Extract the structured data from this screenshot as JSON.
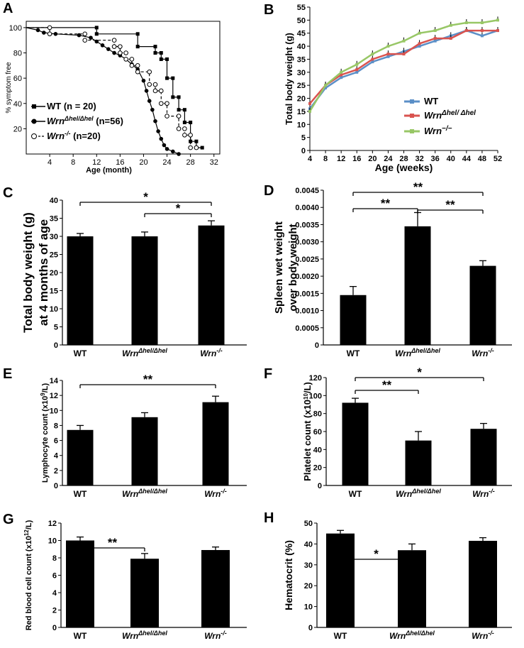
{
  "chart_data": [
    {
      "id": "A",
      "panel_label": "A",
      "type": "line",
      "subtype": "kaplan-meier",
      "xlabel": "Age (month)",
      "ylabel": "% symptom free",
      "xticks": [
        "4",
        "8",
        "12",
        "16",
        "20",
        "24",
        "28",
        "32"
      ],
      "yticks": [
        "20",
        "40",
        "60",
        "80",
        "100"
      ],
      "xlim": [
        0,
        33
      ],
      "ylim": [
        0,
        105
      ],
      "series": [
        {
          "name": "WT",
          "legend": "WT (n = 20)",
          "style": "solid",
          "marker": "square",
          "x": [
            0,
            12,
            12,
            19,
            19,
            22,
            22,
            23,
            23,
            24,
            24,
            25,
            25,
            26,
            26,
            27,
            27,
            28,
            28,
            29,
            29,
            30
          ],
          "y": [
            100,
            100,
            95,
            95,
            85,
            85,
            80,
            80,
            75,
            75,
            60,
            60,
            45,
            45,
            35,
            35,
            25,
            25,
            10,
            10,
            5,
            5
          ]
        },
        {
          "name": "WrnΔhel/Δhel",
          "legend_italic": "Wrn",
          "legend_sup": "Δhel/Δhel",
          "legend_rest": "(n=56)",
          "style": "solid",
          "marker": "filled-circle",
          "x": [
            0,
            2,
            3,
            5,
            9,
            11,
            12,
            13,
            14,
            15,
            16,
            17,
            18,
            19,
            20,
            20.5,
            21,
            21.5,
            22,
            22.5,
            23,
            23.5,
            24,
            25,
            26
          ],
          "y": [
            100,
            98,
            96,
            95,
            94,
            92,
            89,
            86,
            83,
            80,
            78,
            75,
            71,
            67,
            58,
            50,
            42,
            35,
            26,
            18,
            12,
            7,
            4,
            2,
            0
          ]
        },
        {
          "name": "Wrn-/-",
          "legend_italic": "Wrn",
          "legend_sup": "-/-",
          "legend_rest": "(n=20)",
          "style": "dashed",
          "marker": "open-circle",
          "x": [
            0,
            4,
            4,
            10,
            10,
            15,
            15,
            16,
            16,
            17,
            17,
            18,
            18,
            19,
            19,
            21,
            21,
            22,
            22,
            23,
            23,
            24,
            24,
            26,
            26,
            27,
            27,
            28,
            28,
            29
          ],
          "y": [
            100,
            100,
            95,
            95,
            90,
            90,
            85,
            85,
            80,
            80,
            75,
            75,
            70,
            70,
            65,
            65,
            55,
            55,
            50,
            50,
            40,
            40,
            30,
            30,
            20,
            20,
            15,
            15,
            5,
            5
          ]
        }
      ]
    },
    {
      "id": "B",
      "panel_label": "B",
      "type": "line",
      "xlabel": "Age (weeks)",
      "ylabel": "Total body weight (g)",
      "x": [
        4,
        8,
        12,
        16,
        20,
        24,
        28,
        32,
        36,
        40,
        44,
        48,
        52
      ],
      "xlim": [
        4,
        52
      ],
      "ylim": [
        0,
        55
      ],
      "yticks": [
        "0",
        "5",
        "10",
        "15",
        "20",
        "25",
        "30",
        "35",
        "40",
        "45",
        "50",
        "55"
      ],
      "xticks": [
        "4",
        "8",
        "12",
        "16",
        "20",
        "24",
        "28",
        "32",
        "36",
        "40",
        "44",
        "48",
        "52"
      ],
      "series": [
        {
          "name": "WT",
          "legend_text": "WT",
          "color": "#5b8fc7",
          "values": [
            16,
            24,
            28,
            30,
            34,
            36,
            38,
            40,
            42,
            44,
            46,
            44,
            46
          ]
        },
        {
          "name": "WrnΔhel/Δhel",
          "legend_text": "Wrn",
          "legend_sup": "Δhel/ Δhel",
          "color": "#d9534f",
          "values": [
            18,
            25,
            29,
            31,
            35,
            37,
            37,
            41,
            43,
            43,
            46,
            46,
            46
          ]
        },
        {
          "name": "Wrn-/-",
          "legend_text": "Wrn",
          "legend_sup": "−/−",
          "color": "#98c766",
          "values": [
            15,
            25,
            30,
            33,
            37,
            40,
            42,
            45,
            46,
            48,
            49,
            49,
            50
          ]
        }
      ]
    },
    {
      "id": "C",
      "panel_label": "C",
      "type": "bar",
      "ylabel_line1": "Total body weight (g)",
      "ylabel_line2": "at 4 months of age",
      "ylim": [
        0,
        40
      ],
      "yticks": [
        "0",
        "5",
        "10",
        "15",
        "20",
        "25",
        "30",
        "35",
        "40"
      ],
      "values": [
        30,
        30,
        33
      ],
      "errors": [
        0.8,
        1.2,
        1.3
      ],
      "sig": [
        {
          "from": 0,
          "to": 2,
          "label": "*"
        },
        {
          "from": 1,
          "to": 2,
          "label": "*"
        }
      ]
    },
    {
      "id": "D",
      "panel_label": "D",
      "type": "bar",
      "ylabel_line1": "Spleen wet weight",
      "ylabel_line2": "over body weight",
      "ylim": [
        0,
        0.0045
      ],
      "yticks": [
        "0",
        "0.0005",
        "0.0010",
        "0.0015",
        "0.0020",
        "0.0025",
        "0.0030",
        "0.0035",
        "0.0040",
        "0.0045"
      ],
      "values": [
        0.00145,
        0.00345,
        0.0023
      ],
      "errors": [
        0.00025,
        0.0004,
        0.00015
      ],
      "sig": [
        {
          "from": 0,
          "to": 2,
          "label": "**"
        },
        {
          "from": 0,
          "to": 1,
          "label": "**"
        },
        {
          "from": 1,
          "to": 2,
          "label": "**"
        }
      ]
    },
    {
      "id": "E",
      "panel_label": "E",
      "type": "bar",
      "ylabel_pre": "Lymphocyte count (x10",
      "ylabel_sup": "9",
      "ylabel_post": "/L)",
      "ylim": [
        0,
        14
      ],
      "yticks": [
        "0",
        "2",
        "4",
        "6",
        "8",
        "10",
        "12",
        "14"
      ],
      "values": [
        7.4,
        9.1,
        11.1
      ],
      "errors": [
        0.6,
        0.6,
        0.8
      ],
      "sig": [
        {
          "from": 0,
          "to": 2,
          "label": "**"
        }
      ]
    },
    {
      "id": "F",
      "panel_label": "F",
      "type": "bar",
      "ylabel_pre": "Platelet count (x10",
      "ylabel_sup": "10",
      "ylabel_post": "/L)",
      "ylim": [
        0,
        120
      ],
      "yticks": [
        "0",
        "20",
        "40",
        "60",
        "80",
        "100",
        "120"
      ],
      "values": [
        92,
        50,
        63
      ],
      "errors": [
        5,
        10,
        6
      ],
      "sig": [
        {
          "from": 0,
          "to": 2,
          "label": "*"
        },
        {
          "from": 0,
          "to": 1,
          "label": "**"
        }
      ]
    },
    {
      "id": "G",
      "panel_label": "G",
      "type": "bar",
      "ylabel_pre": "Red blood cell count (x10",
      "ylabel_sup": "12",
      "ylabel_post": "/L)",
      "ylim": [
        0,
        12
      ],
      "yticks": [
        "0",
        "2",
        "4",
        "6",
        "8",
        "10",
        "12"
      ],
      "values": [
        10,
        7.9,
        8.9
      ],
      "errors": [
        0.4,
        0.6,
        0.35
      ],
      "sig": [
        {
          "from": 0,
          "to": 1,
          "label": "**"
        }
      ]
    },
    {
      "id": "H",
      "panel_label": "H",
      "type": "bar",
      "ylabel_text": "Hematocrit (%)",
      "ylim": [
        0,
        50
      ],
      "yticks": [
        "0",
        "10",
        "20",
        "30",
        "40",
        "50"
      ],
      "values": [
        45,
        37,
        41.5
      ],
      "errors": [
        1.5,
        3,
        1.5
      ],
      "sig": [
        {
          "from": 0,
          "to": 1,
          "label": "*"
        }
      ]
    }
  ],
  "categories": {
    "wt": "WT",
    "hel_base": "Wrn",
    "hel_sup": "Δhel/Δhel",
    "ko_base": "Wrn",
    "ko_sup": "-/-"
  }
}
